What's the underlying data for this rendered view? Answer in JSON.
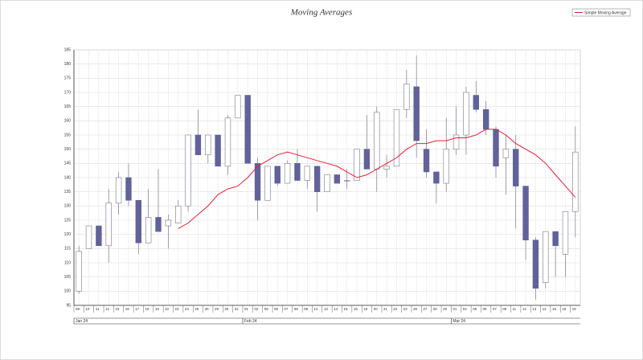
{
  "chart_data": {
    "type": "candlestick",
    "title": "Moving Averages",
    "categories": [
      "09",
      "10",
      "11",
      "12",
      "15",
      "16",
      "17",
      "18",
      "19",
      "22",
      "23",
      "24",
      "25",
      "26",
      "29",
      "30",
      "31",
      "01",
      "02",
      "05",
      "06",
      "07",
      "08",
      "09",
      "12",
      "13",
      "14",
      "15",
      "16",
      "19",
      "20",
      "21",
      "22",
      "23",
      "26",
      "27",
      "28",
      "29",
      "01",
      "04",
      "05",
      "06",
      "07",
      "08",
      "11",
      "12",
      "13",
      "14",
      "15",
      "18",
      "19"
    ],
    "periods": [
      {
        "label": "Jan 24",
        "start": 0
      },
      {
        "label": "Feb 24",
        "start": 17
      },
      {
        "label": "Mar 24",
        "start": 38
      }
    ],
    "ohlc": {
      "up_color": "#ffffff",
      "down_color": "#62629a",
      "edge_color": "#7a7a8a",
      "open": [
        100,
        115,
        123,
        116,
        131,
        140,
        132,
        117,
        126,
        123,
        124,
        130,
        155,
        148,
        155,
        144,
        161,
        169,
        145,
        132,
        144,
        138,
        145,
        139,
        144,
        135,
        141,
        139,
        139,
        150,
        143,
        143,
        144,
        164,
        172,
        150,
        142,
        138,
        150,
        155,
        169,
        164,
        157,
        147,
        150,
        137,
        118,
        103,
        121,
        113,
        128
      ],
      "high": [
        116,
        123,
        123,
        136,
        142,
        145,
        132,
        136,
        143,
        127,
        132,
        155,
        164,
        155,
        155,
        162,
        169,
        169,
        147,
        143,
        144,
        146,
        150,
        144,
        144,
        141,
        141,
        143,
        150,
        162,
        165,
        148,
        164,
        178,
        183,
        157,
        142,
        161,
        165,
        172,
        174,
        167,
        158,
        155,
        155,
        137,
        119,
        121,
        121,
        128,
        158
      ],
      "low": [
        99,
        115,
        116,
        110,
        127,
        130,
        113,
        117,
        121,
        115,
        124,
        128,
        148,
        145,
        144,
        141,
        161,
        145,
        125,
        132,
        137,
        138,
        139,
        136,
        128,
        135,
        138,
        136,
        139,
        143,
        135,
        140,
        144,
        161,
        147,
        140,
        131,
        135,
        148,
        148,
        163,
        155,
        140,
        134,
        122,
        111,
        97,
        101,
        105,
        105,
        119
      ],
      "close": [
        114,
        123,
        116,
        131,
        140,
        132,
        117,
        126,
        121,
        125,
        130,
        155,
        148,
        155,
        144,
        161,
        169,
        145,
        132,
        144,
        138,
        145,
        139,
        144,
        135,
        141,
        138,
        139,
        150,
        143,
        163,
        144,
        164,
        173,
        153,
        142,
        138,
        150,
        155,
        170,
        164,
        157,
        144,
        150,
        137,
        118,
        101,
        121,
        116,
        128,
        149
      ]
    },
    "series": [
      {
        "name": "Simple Moving Average",
        "color": "#e0203a",
        "values": [
          null,
          null,
          null,
          null,
          null,
          null,
          null,
          null,
          null,
          null,
          122,
          124,
          127,
          130,
          134,
          136,
          137,
          140,
          144,
          146,
          148,
          149,
          148,
          147,
          146,
          145,
          144,
          142,
          140,
          141,
          143,
          145,
          147,
          150,
          152,
          152,
          153,
          153,
          154,
          154,
          155,
          157,
          157,
          155,
          152,
          150,
          148,
          145,
          141,
          137,
          133
        ]
      }
    ],
    "ylim": [
      95,
      185
    ],
    "yticks": [
      95,
      100,
      105,
      110,
      115,
      120,
      125,
      130,
      135,
      140,
      145,
      150,
      155,
      160,
      165,
      170,
      175,
      180,
      185
    ],
    "grid": true
  }
}
